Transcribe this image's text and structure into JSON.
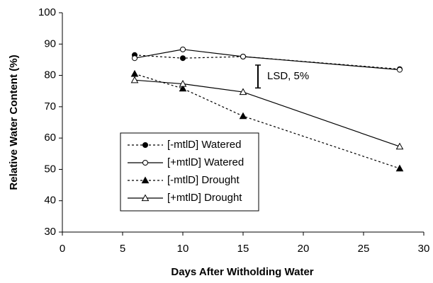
{
  "chart_data": {
    "type": "line",
    "x_label": "Days After Witholding Water",
    "y_label": "Relative Water Content (%)",
    "x": [
      6,
      10,
      15,
      28
    ],
    "series": [
      {
        "name": "[-mtlD] Watered",
        "color": "#000000",
        "line_style": "dotted",
        "marker": "circle",
        "marker_filled": true,
        "values": [
          86.5,
          85.5,
          86,
          82
        ]
      },
      {
        "name": "[+mtlD] Watered",
        "color": "#000000",
        "line_style": "solid",
        "marker": "circle",
        "marker_filled": false,
        "values": [
          85.5,
          88.3,
          86,
          81.8
        ]
      },
      {
        "name": "[-mtlD] Drought",
        "color": "#000000",
        "line_style": "dotted",
        "marker": "triangle",
        "marker_filled": true,
        "values": [
          80.5,
          75.8,
          67,
          50.3
        ]
      },
      {
        "name": "[+mtlD] Drought",
        "color": "#000000",
        "line_style": "solid",
        "marker": "triangle",
        "marker_filled": false,
        "values": [
          78.5,
          77.3,
          74.7,
          57.3
        ]
      }
    ],
    "lsd": {
      "label": "LSD, 5%",
      "value": 7.3
    },
    "xlim": [
      0,
      30
    ],
    "xticks": [
      0,
      5,
      10,
      15,
      20,
      25,
      30
    ],
    "ylim": [
      30,
      100
    ],
    "yticks": [
      30,
      40,
      50,
      60,
      70,
      80,
      90,
      100
    ],
    "grid": false
  }
}
